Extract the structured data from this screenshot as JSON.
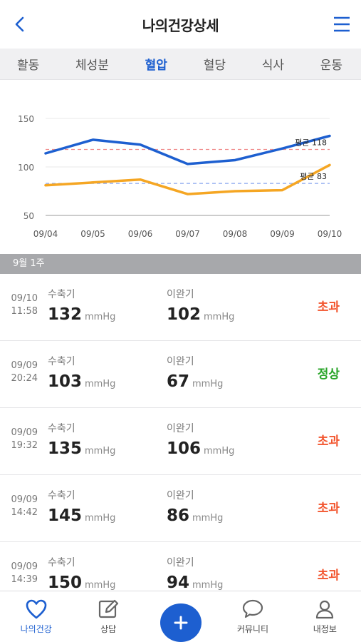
{
  "header": {
    "title": "나의건강상세"
  },
  "tabs": [
    {
      "label": "활동",
      "active": false
    },
    {
      "label": "체성분",
      "active": false
    },
    {
      "label": "혈압",
      "active": true
    },
    {
      "label": "혈당",
      "active": false
    },
    {
      "label": "식사",
      "active": false
    },
    {
      "label": "운동",
      "active": false
    }
  ],
  "chart_data": {
    "type": "line",
    "categories": [
      "09/04",
      "09/05",
      "09/06",
      "09/07",
      "09/08",
      "09/09",
      "09/10"
    ],
    "series": [
      {
        "values": [
          114,
          128,
          123,
          103,
          107,
          119,
          132
        ],
        "color": "#1d5fd0"
      },
      {
        "values": [
          81,
          84,
          87,
          72,
          75,
          76,
          102
        ],
        "color": "#f5a623"
      }
    ],
    "averages": [
      {
        "label": "평균 118",
        "value": 118,
        "color": "#f08a8a"
      },
      {
        "label": "평균 83",
        "value": 83,
        "color": "#8aa6ef"
      }
    ],
    "yticks": [
      50,
      100,
      150
    ],
    "ylim": [
      40,
      160
    ]
  },
  "week_label": "9월 1주",
  "list": {
    "sys_label": "수축기",
    "dia_label": "이완기",
    "unit": "mmHg",
    "rows": [
      {
        "date": "09/10",
        "time": "11:58",
        "sys": "132",
        "dia": "102",
        "status": "초과"
      },
      {
        "date": "09/09",
        "time": "20:24",
        "sys": "103",
        "dia": "67",
        "status": "정상"
      },
      {
        "date": "09/09",
        "time": "19:32",
        "sys": "135",
        "dia": "106",
        "status": "초과"
      },
      {
        "date": "09/09",
        "time": "14:42",
        "sys": "145",
        "dia": "86",
        "status": "초과"
      },
      {
        "date": "09/09",
        "time": "14:39",
        "sys": "150",
        "dia": "94",
        "status": "초과"
      }
    ]
  },
  "bottom_nav": {
    "home": "나의건강",
    "consult": "상담",
    "community": "커뮤니티",
    "my": "내정보"
  },
  "colors": {
    "accent": "#1d5fd0",
    "over": "#f2542d",
    "normal": "#2aa52a"
  }
}
